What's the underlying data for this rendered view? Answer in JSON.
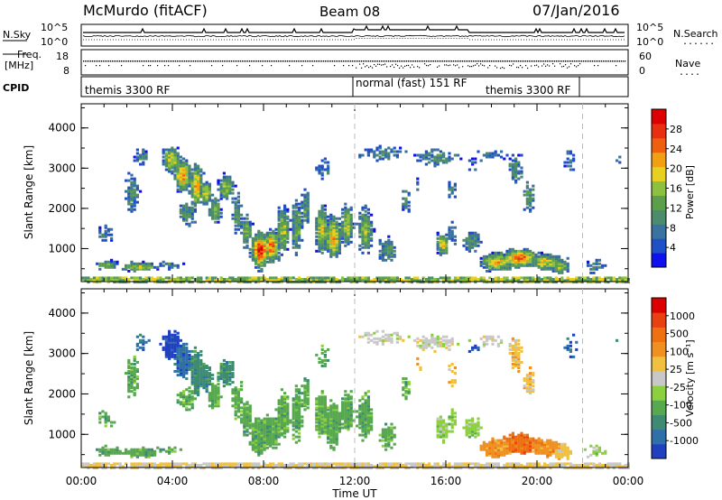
{
  "header": {
    "station": "McMurdo (fitACF)",
    "beam": "Beam 08",
    "date": "07/Jan/2016"
  },
  "summary": {
    "nsky_label": "N.Sky",
    "nsearch_label": "N.Search",
    "freq_label_1": "Freq.",
    "freq_label_2": "[MHz]",
    "nave_label": "Nave",
    "cpid_label": "CPID",
    "nsky_ticks": [
      "10^5",
      "10^0"
    ],
    "nsearch_ticks": [
      "10^5",
      "10^0"
    ],
    "freq_ticks": [
      "18",
      "8"
    ],
    "nave_ticks": [
      "60",
      "0"
    ],
    "cpid_segments": [
      {
        "label": "themis 3300 RF",
        "start": 0.0,
        "end": 12.0
      },
      {
        "label": "normal (fast) 151 RF",
        "start": 12.0,
        "end": 22.0
      },
      {
        "label": "themis 3300 RF",
        "start": 18.0,
        "end": 22.0
      }
    ]
  },
  "colors": {
    "power_scale": [
      "#1010ee",
      "#2050c8",
      "#3a72a0",
      "#4c8c6c",
      "#5c9e4c",
      "#8cc040",
      "#e8d020",
      "#f0a010",
      "#ee6010",
      "#e83010",
      "#dd0000"
    ],
    "velocity_scale": [
      "#2040c0",
      "#3070a8",
      "#3e8a72",
      "#58a850",
      "#8cd040",
      "#c8c8c8",
      "#f0c040",
      "#f09020",
      "#ee7010",
      "#e84010",
      "#dd0000"
    ]
  },
  "chart_data": [
    {
      "type": "heatmap",
      "name": "power",
      "xlabel": "",
      "ylabel": "Slant Range [km]",
      "x_ticks": [
        "00:00",
        "04:00",
        "08:00",
        "12:00",
        "16:00",
        "20:00",
        "00:00"
      ],
      "x_range_hours": [
        0,
        24
      ],
      "y_ticks": [
        "1000",
        "2000",
        "3000",
        "4000"
      ],
      "y_range_km": [
        180,
        4600
      ],
      "colorbar_label": "Power [dB]",
      "colorbar_ticks": [
        "28",
        "24",
        "20",
        "16",
        "12",
        "8",
        "4"
      ],
      "colorbar_range": [
        0,
        32
      ]
    },
    {
      "type": "heatmap",
      "name": "velocity",
      "xlabel": "Time UT",
      "ylabel": "Slant Range [km]",
      "x_ticks": [
        "00:00",
        "04:00",
        "08:00",
        "12:00",
        "16:00",
        "20:00",
        "00:00"
      ],
      "x_range_hours": [
        0,
        24
      ],
      "y_ticks": [
        "1000",
        "2000",
        "3000",
        "4000"
      ],
      "y_range_km": [
        180,
        4600
      ],
      "colorbar_label": "Velocity [m s⁻¹]",
      "colorbar_ticks": [
        "1000",
        "500",
        "100",
        "25",
        "-25",
        "-100",
        "-500",
        "-1000"
      ]
    }
  ]
}
